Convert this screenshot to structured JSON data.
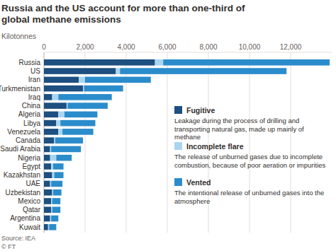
{
  "chart_data": {
    "type": "bar",
    "orientation": "horizontal",
    "stacked": true,
    "title": "Russia and the US account for more than one-third of global methane emissions",
    "subtitle": "Kilotonnes",
    "source": "Source: IEA",
    "credit": "© FT",
    "categories": [
      "Russia",
      "US",
      "Iran",
      "Turkmenistan",
      "Iraq",
      "China",
      "Algeria",
      "Libya",
      "Venezuela",
      "Canada",
      "Saudi Arabia",
      "Nigeria",
      "Egypt",
      "Kazakhstan",
      "UAE",
      "Uzbekistan",
      "Mexico",
      "Qatar",
      "Argentina",
      "Kuwait"
    ],
    "series": [
      {
        "name": "Fugitive",
        "description": "Leakage during the process of drilling and transporting natural gas, made up mainly of methane",
        "color": "#1d4f80",
        "values": [
          5400,
          3500,
          1700,
          1900,
          400,
          1100,
          700,
          600,
          700,
          500,
          300,
          300,
          350,
          400,
          300,
          400,
          350,
          350,
          300,
          200
        ]
      },
      {
        "name": "Incomplete flare",
        "description": "The release of unburned gases due to incomplete combustion, because of poor aeration or impurities",
        "color": "#a9d5f0",
        "values": [
          400,
          200,
          300,
          50,
          300,
          50,
          300,
          200,
          200,
          50,
          50,
          300,
          100,
          100,
          50,
          50,
          50,
          50,
          50,
          50
        ]
      },
      {
        "name": "Vented",
        "description": "The intentional release of unburned gases into the atmosphere",
        "color": "#2b8ccb",
        "values": [
          8100,
          8100,
          3200,
          1900,
          2600,
          1950,
          1600,
          1700,
          1500,
          1350,
          1450,
          750,
          500,
          450,
          550,
          400,
          400,
          400,
          350,
          350
        ]
      }
    ],
    "xlim": [
      0,
      14000
    ],
    "xticks": [
      0,
      {
        "value": 2000,
        "label": "2,000"
      },
      {
        "value": 4000,
        "label": "4,000"
      },
      {
        "value": 6000,
        "label": "6,000"
      },
      {
        "value": 8000,
        "label": "8,000"
      },
      {
        "value": 10000,
        "label": "10,000"
      },
      {
        "value": 12000,
        "label": "12,000"
      }
    ],
    "grid": true,
    "legend": "lower right"
  }
}
